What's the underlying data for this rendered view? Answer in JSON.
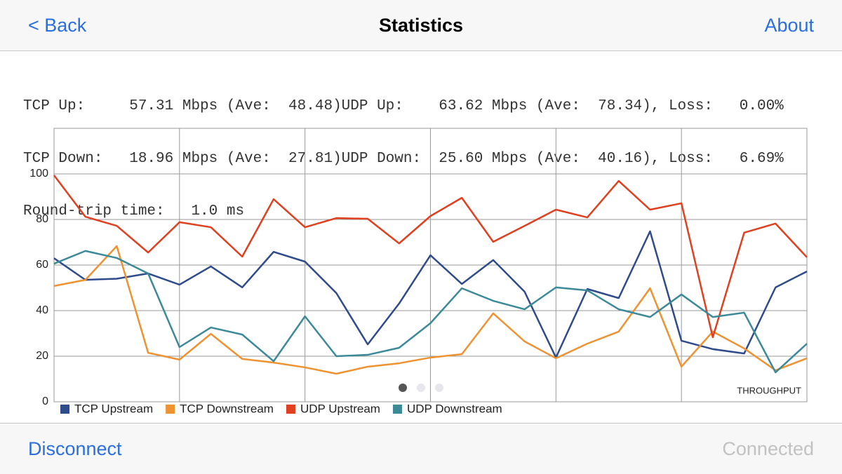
{
  "header": {
    "back": "< Back",
    "title": "Statistics",
    "about": "About"
  },
  "stats": {
    "lines": [
      "TCP Up:     57.31 Mbps (Ave:  48.48)UDP Up:    63.62 Mbps (Ave:  78.34), Loss:   0.00%",
      "TCP Down:   18.96 Mbps (Ave:  27.81)UDP Down:  25.60 Mbps (Ave:  40.16), Loss:   6.69%",
      "Round-trip time:   1.0 ms"
    ]
  },
  "chart_data": {
    "type": "line",
    "annotation": "THROUGHPUT",
    "categories": [
      null,
      null,
      null,
      null,
      null,
      null,
      null,
      null,
      null,
      null,
      null,
      null,
      null,
      null,
      null,
      null,
      null,
      null,
      null,
      null,
      null,
      null,
      null,
      null,
      null
    ],
    "ylim": [
      0,
      120
    ],
    "yticks": [
      0,
      20,
      40,
      60,
      80,
      100
    ],
    "grid": true,
    "legend": "bottom",
    "series": [
      {
        "name": "TCP Upstream",
        "color": "#2f4b8c",
        "values": [
          63,
          53.5,
          54,
          56.3,
          51.4,
          59.4,
          50.2,
          65.8,
          61.5,
          47.7,
          25.2,
          43.1,
          64.3,
          51.7,
          62.2,
          48.3,
          19.4,
          49.5,
          45.5,
          74.8,
          26.8,
          23.1,
          21.2,
          50.2,
          57.2
        ]
      },
      {
        "name": "TCP Downstream",
        "color": "#ee9232",
        "values": [
          50.8,
          53.5,
          68.3,
          21.5,
          18.5,
          29.8,
          18.8,
          17.2,
          15.1,
          12.3,
          15.4,
          16.9,
          19.4,
          20.9,
          38.8,
          26.5,
          19.1,
          25.5,
          30.8,
          49.8,
          15.4,
          30.8,
          23.4,
          13.8,
          19.1
        ]
      },
      {
        "name": "UDP Upstream",
        "color": "#e0401f",
        "values": [
          99.4,
          81.2,
          77.2,
          65.5,
          78.8,
          76.6,
          63.7,
          88.9,
          76.6,
          80.6,
          80.3,
          69.5,
          81.5,
          89.5,
          70.2,
          77.2,
          84.3,
          80.9,
          96.9,
          84.3,
          87.1,
          28.3,
          74.2,
          78.2,
          63.4
        ]
      },
      {
        "name": "UDP Downstream",
        "color": "#3c8a98",
        "values": [
          60.6,
          66.2,
          63.1,
          56.3,
          24,
          32.6,
          29.5,
          17.8,
          37.5,
          20,
          20.6,
          23.7,
          34.5,
          49.8,
          44.3,
          40.6,
          50.2,
          48.9,
          40.6,
          37.2,
          47.1,
          37.2,
          39.1,
          12.9,
          25.5
        ]
      }
    ]
  },
  "footer": {
    "disconnect": "Disconnect",
    "status": "Connected"
  }
}
